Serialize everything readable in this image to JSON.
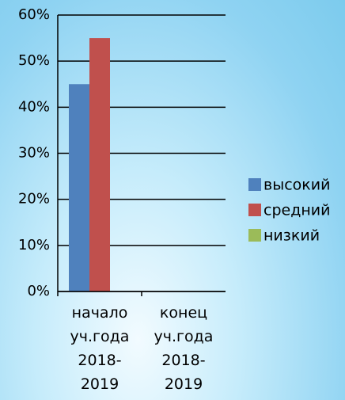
{
  "chart_data": {
    "type": "bar",
    "categories": [
      "начало уч.года 2018-2019",
      "конец уч.года 2018-2019"
    ],
    "series": [
      {
        "name": "высокий",
        "color": "#4f81bd",
        "values": [
          45,
          null
        ]
      },
      {
        "name": "средний",
        "color": "#c0504d",
        "values": [
          55,
          null
        ]
      },
      {
        "name": "низкий",
        "color": "#9bbb59",
        "values": [
          0,
          null
        ]
      }
    ],
    "ylim": [
      0,
      60
    ],
    "yticks": [
      {
        "value": 0,
        "label": "0%"
      },
      {
        "value": 10,
        "label": "10%"
      },
      {
        "value": 20,
        "label": "20%"
      },
      {
        "value": 30,
        "label": "30%"
      },
      {
        "value": 40,
        "label": "40%"
      },
      {
        "value": 50,
        "label": "50%"
      },
      {
        "value": 60,
        "label": "60%"
      }
    ],
    "grid": true,
    "legend": "right"
  }
}
